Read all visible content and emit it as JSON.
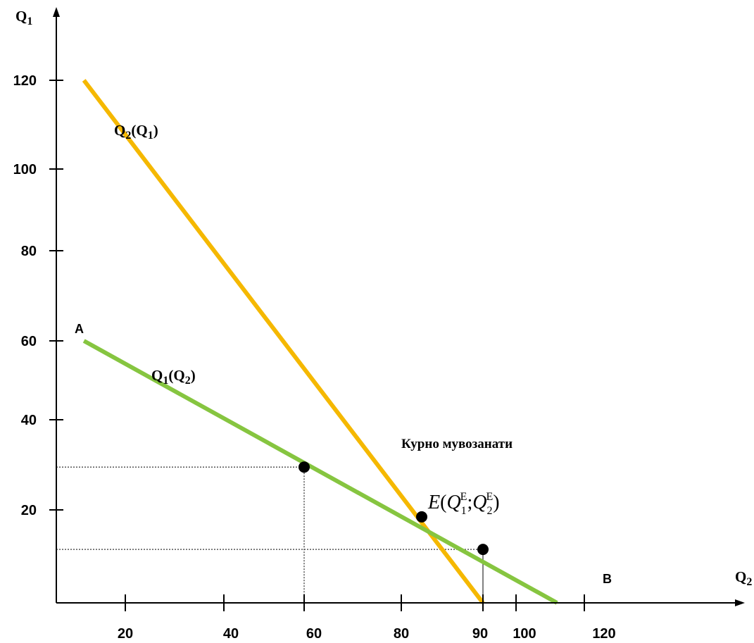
{
  "chart_data": {
    "type": "line",
    "x_axis": {
      "label_main": "Q",
      "label_sub": "2",
      "ticks": [
        20,
        40,
        60,
        80,
        90,
        100,
        120
      ]
    },
    "y_axis": {
      "label_main": "Q",
      "label_sub": "1",
      "ticks": [
        20,
        40,
        60,
        80,
        100,
        120
      ]
    },
    "series": [
      {
        "label_main": "Q",
        "label_sub": "2",
        "label_paren_main": "Q",
        "label_paren_sub": "1",
        "color": "#f5b800",
        "points": [
          [
            8,
            120
          ],
          [
            90,
            0
          ]
        ]
      },
      {
        "label_main": "Q",
        "label_sub": "1",
        "label_paren_main": "Q",
        "label_paren_sub": "2",
        "color": "#86c540",
        "points": [
          [
            8,
            60
          ],
          [
            112,
            0
          ]
        ]
      }
    ],
    "markers": [
      {
        "x": 60,
        "y": 29.5,
        "guide_x": true,
        "guide_y": true
      },
      {
        "x": 82.5,
        "y": 18.5,
        "guide_x": false,
        "guide_y": false
      },
      {
        "x": 90,
        "y": 11.5,
        "guide_x": true,
        "guide_y": true
      }
    ],
    "point_labels": {
      "a": "A",
      "b": "B"
    },
    "annotations": {
      "equilibrium_title": "Курно мувозанати",
      "equilibrium_label": {
        "main": "E",
        "q": "Q",
        "sub1": "1",
        "sub2": "2",
        "sup": "E"
      }
    },
    "colors": {
      "axis": "#000000",
      "guide": "#555555"
    }
  }
}
